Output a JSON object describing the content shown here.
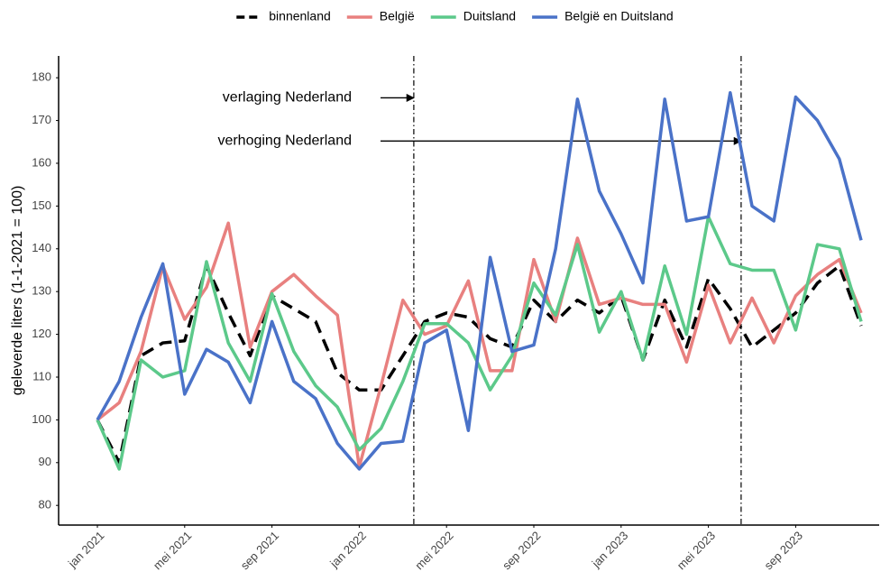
{
  "chart_data": {
    "type": "line",
    "y_label": "geleverde liters (1-1-2021 = 100)",
    "categories": [
      "jan 2021",
      null,
      null,
      null,
      "mei 2021",
      null,
      null,
      null,
      "sep 2021",
      null,
      null,
      null,
      "jan 2022",
      null,
      null,
      null,
      "mei 2022",
      null,
      null,
      null,
      "sep 2022",
      null,
      null,
      null,
      "jan 2023",
      null,
      null,
      null,
      "mei 2023",
      null,
      null,
      null,
      "sep 2023",
      null,
      null,
      null
    ],
    "series": [
      {
        "name": "binnenland",
        "color": "#000000",
        "dashed": true,
        "values": [
          100,
          90,
          115,
          118,
          118.5,
          136,
          125,
          115,
          129,
          126,
          123,
          111,
          107,
          107,
          115,
          123,
          125,
          124,
          119,
          117,
          128,
          123,
          128,
          125,
          129,
          114,
          128,
          117,
          133,
          126,
          117,
          121,
          125,
          132,
          136,
          122
        ]
      },
      {
        "name": "België",
        "color": "#e8807f",
        "values": [
          100,
          104,
          116,
          136,
          123.5,
          131,
          146,
          117,
          130,
          134,
          129,
          124.5,
          89,
          108,
          128,
          120,
          122,
          132.5,
          111.5,
          111.5,
          137.5,
          123,
          142.5,
          127,
          128.5,
          127,
          127,
          113.5,
          131.5,
          118,
          128.5,
          118,
          129,
          134,
          137.5,
          125
        ]
      },
      {
        "name": "Duitsland",
        "color": "#5cc98a",
        "values": [
          100,
          88.5,
          114,
          110,
          111.5,
          137,
          118,
          109,
          129.5,
          116,
          108,
          103,
          93,
          98,
          109,
          122.5,
          122.5,
          118,
          107,
          115,
          132,
          124.5,
          141,
          120.5,
          130,
          114,
          136,
          120,
          147.5,
          136.5,
          135,
          135,
          121,
          141,
          140,
          123
        ]
      },
      {
        "name": "België en Duitsland",
        "color": "#4a72c8",
        "values": [
          100,
          109,
          124,
          136.5,
          106,
          116.5,
          113.5,
          104,
          123,
          109,
          105,
          94.5,
          88.5,
          94.5,
          95,
          118,
          121,
          97.5,
          138,
          116,
          117.5,
          140,
          175,
          153.5,
          143.5,
          132,
          175,
          146.5,
          147.5,
          176.5,
          150,
          146.5,
          175.5,
          170,
          161,
          142
        ]
      }
    ],
    "ylim": [
      75.4,
      185.1
    ],
    "yticks": [
      80,
      90,
      100,
      110,
      120,
      130,
      140,
      150,
      160,
      170,
      180
    ],
    "grid": false,
    "legend": "top",
    "annotations": [
      {
        "text": "verlaging Nederland",
        "x": 14.5,
        "y": 175.3
      },
      {
        "text": "verhoging Nederland",
        "x": 29.5,
        "y": 165.2
      }
    ]
  }
}
